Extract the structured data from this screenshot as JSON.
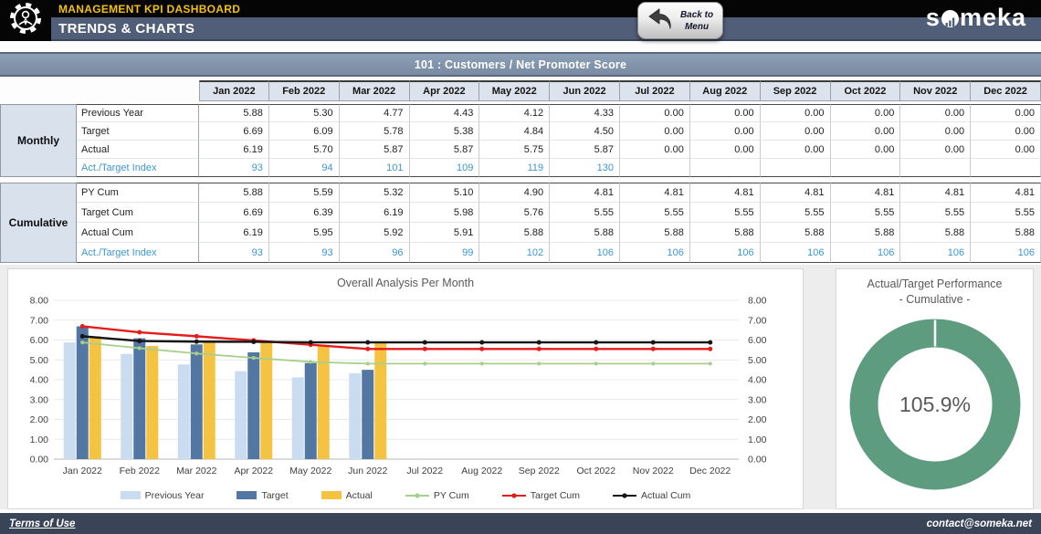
{
  "colors": {
    "accent_yellow": "#F2C00F",
    "header_slate": "#515E78",
    "section_bar": "#8194AB",
    "table_group_bg": "#D9E1ED",
    "index_blue": "#3E96D2",
    "bar_previous_year": "#C9DCF0",
    "bar_target": "#5377A3",
    "bar_actual": "#F5C342",
    "line_py_cum": "#A9CF8E",
    "line_target_cum": "#E51C1C",
    "line_actual_cum": "#151515",
    "donut_green": "#5E9C80",
    "footer_bg": "#394457"
  },
  "header": {
    "app_title": "MANAGEMENT KPI DASHBOARD",
    "page_title": "TRENDS & CHARTS",
    "back_button_line1": "Back to",
    "back_button_line2": "Menu",
    "logo_text_start": "s",
    "logo_text_end": "meka"
  },
  "section_bar": {
    "title": "101 : Customers / Net Promoter Score"
  },
  "table": {
    "months": [
      "Jan 2022",
      "Feb 2022",
      "Mar 2022",
      "Apr 2022",
      "May 2022",
      "Jun 2022",
      "Jul 2022",
      "Aug 2022",
      "Sep 2022",
      "Oct 2022",
      "Nov 2022",
      "Dec 2022"
    ],
    "groups": [
      {
        "label": "Monthly",
        "rows": [
          {
            "label": "Previous Year",
            "type": "normal",
            "values": [
              "5.88",
              "5.30",
              "4.77",
              "4.43",
              "4.12",
              "4.33",
              "0.00",
              "0.00",
              "0.00",
              "0.00",
              "0.00",
              "0.00"
            ]
          },
          {
            "label": "Target",
            "type": "normal",
            "values": [
              "6.69",
              "6.09",
              "5.78",
              "5.38",
              "4.84",
              "4.50",
              "0.00",
              "0.00",
              "0.00",
              "0.00",
              "0.00",
              "0.00"
            ]
          },
          {
            "label": "Actual",
            "type": "normal",
            "values": [
              "6.19",
              "5.70",
              "5.87",
              "5.87",
              "5.75",
              "5.87",
              "0.00",
              "0.00",
              "0.00",
              "0.00",
              "0.00",
              "0.00"
            ]
          },
          {
            "label": "Act./Target Index",
            "type": "index",
            "values": [
              "93",
              "94",
              "101",
              "109",
              "119",
              "130",
              "",
              "",
              "",
              "",
              "",
              ""
            ]
          }
        ]
      },
      {
        "label": "Cumulative",
        "rows": [
          {
            "label": "PY Cum",
            "type": "normal",
            "values": [
              "5.88",
              "5.59",
              "5.32",
              "5.10",
              "4.90",
              "4.81",
              "4.81",
              "4.81",
              "4.81",
              "4.81",
              "4.81",
              "4.81"
            ]
          },
          {
            "label": "Target Cum",
            "type": "normal",
            "values": [
              "6.69",
              "6.39",
              "6.19",
              "5.98",
              "5.76",
              "5.55",
              "5.55",
              "5.55",
              "5.55",
              "5.55",
              "5.55",
              "5.55"
            ]
          },
          {
            "label": "Actual Cum",
            "type": "normal",
            "values": [
              "6.19",
              "5.95",
              "5.92",
              "5.91",
              "5.88",
              "5.88",
              "5.88",
              "5.88",
              "5.88",
              "5.88",
              "5.88",
              "5.88"
            ]
          },
          {
            "label": "Act./Target Index",
            "type": "index",
            "values": [
              "93",
              "93",
              "96",
              "99",
              "102",
              "106",
              "106",
              "106",
              "106",
              "106",
              "106",
              "106"
            ]
          }
        ]
      }
    ]
  },
  "chart_data": [
    {
      "type": "combo-bar-line",
      "title": "Overall Analysis Per Month",
      "categories": [
        "Jan 2022",
        "Feb 2022",
        "Mar 2022",
        "Apr 2022",
        "May 2022",
        "Jun 2022",
        "Jul 2022",
        "Aug 2022",
        "Sep 2022",
        "Oct 2022",
        "Nov 2022",
        "Dec 2022"
      ],
      "bar_series": [
        {
          "name": "Previous Year",
          "color": "#C9DCF0",
          "values": [
            5.88,
            5.3,
            4.77,
            4.43,
            4.12,
            4.33,
            0,
            0,
            0,
            0,
            0,
            0
          ]
        },
        {
          "name": "Target",
          "color": "#5377A3",
          "values": [
            6.69,
            6.09,
            5.78,
            5.38,
            4.84,
            4.5,
            0,
            0,
            0,
            0,
            0,
            0
          ]
        },
        {
          "name": "Actual",
          "color": "#F5C342",
          "values": [
            6.19,
            5.7,
            5.87,
            5.87,
            5.75,
            5.87,
            0,
            0,
            0,
            0,
            0,
            0
          ]
        }
      ],
      "line_series": [
        {
          "name": "PY Cum",
          "color": "#A9CF8E",
          "values": [
            5.88,
            5.59,
            5.32,
            5.1,
            4.9,
            4.81,
            4.81,
            4.81,
            4.81,
            4.81,
            4.81,
            4.81
          ]
        },
        {
          "name": "Target Cum",
          "color": "#E51C1C",
          "values": [
            6.69,
            6.39,
            6.19,
            5.98,
            5.76,
            5.55,
            5.55,
            5.55,
            5.55,
            5.55,
            5.55,
            5.55
          ]
        },
        {
          "name": "Actual Cum",
          "color": "#151515",
          "values": [
            6.19,
            5.95,
            5.92,
            5.91,
            5.88,
            5.88,
            5.88,
            5.88,
            5.88,
            5.88,
            5.88,
            5.88
          ]
        }
      ],
      "ylim": [
        0,
        8
      ],
      "ytick_step": 1,
      "y_axis_sides": "both",
      "grid": true,
      "legend_position": "bottom"
    },
    {
      "type": "donut",
      "title": "Actual/Target Performance",
      "subtitle": "- Cumulative -",
      "value_pct": 105.9,
      "value_label": "105.9%",
      "ring_color": "#5E9C80"
    }
  ],
  "footer": {
    "terms_label": "Terms of Use",
    "contact_label": "contact@someka.net"
  }
}
